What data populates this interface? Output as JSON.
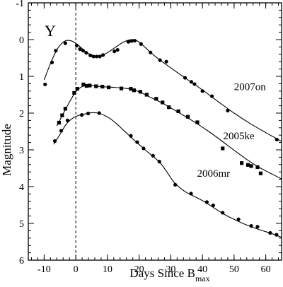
{
  "chart_data": {
    "type": "scatter",
    "title": "",
    "panel_label": "Y",
    "xlabel": {
      "main": "Days Since B",
      "subscript": "max"
    },
    "ylabel": "Magnitude",
    "xlim": [
      -15,
      65
    ],
    "ylim": [
      -1,
      6
    ],
    "y_inverted": true,
    "x_ticks": [
      -10,
      0,
      10,
      20,
      30,
      40,
      50,
      60
    ],
    "y_ticks": [
      -1,
      0,
      1,
      2,
      3,
      4,
      5,
      6
    ],
    "x_minor_step": 2,
    "y_minor_step": 0.2,
    "vline_x": 0,
    "grid": false,
    "series": [
      {
        "name": "2007on",
        "marker": "circle",
        "points": [
          [
            -9.7,
            1.22
          ],
          [
            -7.5,
            0.62
          ],
          [
            -6.3,
            0.3
          ],
          [
            -3.3,
            0.1
          ],
          [
            0.3,
            0.16
          ],
          [
            1.3,
            0.26
          ],
          [
            2.3,
            0.3
          ],
          [
            3.3,
            0.36
          ],
          [
            4.6,
            0.43
          ],
          [
            5.6,
            0.46
          ],
          [
            6.6,
            0.46
          ],
          [
            7.6,
            0.46
          ],
          [
            8.6,
            0.42
          ],
          [
            12.2,
            0.32
          ],
          [
            13.2,
            0.28
          ],
          [
            16.6,
            0.06
          ],
          [
            17.6,
            0.04
          ],
          [
            18.6,
            0.03
          ],
          [
            20.6,
            0.12
          ],
          [
            23.6,
            0.35
          ],
          [
            26.6,
            0.56
          ],
          [
            28.6,
            0.6
          ],
          [
            34.5,
            1.04
          ],
          [
            36.5,
            1.15
          ],
          [
            37.5,
            1.21
          ],
          [
            40.0,
            1.4
          ],
          [
            43.0,
            1.54
          ],
          [
            48.0,
            1.93
          ],
          [
            63.5,
            2.72
          ]
        ],
        "curve": [
          [
            -10,
            1.1
          ],
          [
            -8,
            0.65
          ],
          [
            -6,
            0.28
          ],
          [
            -4,
            0.07
          ],
          [
            -2.5,
            0.02
          ],
          [
            -1,
            0.05
          ],
          [
            1,
            0.17
          ],
          [
            3,
            0.32
          ],
          [
            5,
            0.42
          ],
          [
            7,
            0.45
          ],
          [
            9,
            0.4
          ],
          [
            11,
            0.3
          ],
          [
            13,
            0.18
          ],
          [
            15,
            0.07
          ],
          [
            16.5,
            0.02
          ],
          [
            18,
            0.0
          ],
          [
            19.5,
            0.04
          ],
          [
            21,
            0.14
          ],
          [
            23,
            0.3
          ],
          [
            25,
            0.45
          ],
          [
            27,
            0.58
          ],
          [
            30,
            0.77
          ],
          [
            35,
            1.07
          ],
          [
            40,
            1.37
          ],
          [
            45,
            1.69
          ],
          [
            50,
            2.0
          ],
          [
            55,
            2.28
          ],
          [
            60,
            2.53
          ],
          [
            65,
            2.77
          ]
        ],
        "label": "2007on",
        "label_at": [
          55,
          1.28
        ]
      },
      {
        "name": "2005ke",
        "marker": "square",
        "points": [
          [
            -5.3,
            2.26
          ],
          [
            -4.3,
            2.06
          ],
          [
            -3.3,
            1.88
          ],
          [
            -0.5,
            1.45
          ],
          [
            0.5,
            1.34
          ],
          [
            2.4,
            1.22
          ],
          [
            3.4,
            1.26
          ],
          [
            4.4,
            1.25
          ],
          [
            6.4,
            1.27
          ],
          [
            8.4,
            1.28
          ],
          [
            10.4,
            1.3
          ],
          [
            14.4,
            1.33
          ],
          [
            17.4,
            1.34
          ],
          [
            18.4,
            1.38
          ],
          [
            20.4,
            1.42
          ],
          [
            22.4,
            1.5
          ],
          [
            25.4,
            1.61
          ],
          [
            27.4,
            1.71
          ],
          [
            29.4,
            1.84
          ],
          [
            32.4,
            1.95
          ],
          [
            35.4,
            2.1
          ],
          [
            38.4,
            2.25
          ],
          [
            46.4,
            2.96
          ],
          [
            52.4,
            3.36
          ],
          [
            54.4,
            3.41
          ],
          [
            55.4,
            3.44
          ],
          [
            57.4,
            3.47
          ],
          [
            58.4,
            3.64
          ]
        ],
        "curve": [
          [
            -6,
            2.35
          ],
          [
            -4,
            2.02
          ],
          [
            -2,
            1.7
          ],
          [
            0,
            1.42
          ],
          [
            2,
            1.28
          ],
          [
            4,
            1.25
          ],
          [
            6,
            1.26
          ],
          [
            8,
            1.28
          ],
          [
            10,
            1.29
          ],
          [
            12,
            1.3
          ],
          [
            14,
            1.31
          ],
          [
            16,
            1.33
          ],
          [
            18,
            1.36
          ],
          [
            20,
            1.42
          ],
          [
            22,
            1.5
          ],
          [
            24,
            1.59
          ],
          [
            26,
            1.67
          ],
          [
            28,
            1.76
          ],
          [
            30,
            1.86
          ],
          [
            34,
            2.06
          ],
          [
            38,
            2.27
          ],
          [
            42,
            2.5
          ],
          [
            46,
            2.75
          ],
          [
            50,
            3.01
          ],
          [
            54,
            3.26
          ],
          [
            58,
            3.48
          ],
          [
            62,
            3.66
          ],
          [
            65,
            3.79
          ]
        ],
        "label": "2005ke",
        "label_at": [
          51.5,
          2.62
        ]
      },
      {
        "name": "2006mr",
        "marker": "circle",
        "points": [
          [
            -6.6,
            2.76
          ],
          [
            -4.6,
            2.48
          ],
          [
            -2.6,
            2.2
          ],
          [
            1.9,
            2.05
          ],
          [
            3.9,
            2.01
          ],
          [
            7.4,
            2.0
          ],
          [
            17.4,
            2.62
          ],
          [
            19.4,
            2.79
          ],
          [
            21.4,
            2.96
          ],
          [
            24.4,
            3.16
          ],
          [
            26.4,
            3.32
          ],
          [
            31.4,
            3.95
          ],
          [
            36.4,
            4.19
          ],
          [
            41.4,
            4.42
          ],
          [
            43.4,
            4.51
          ],
          [
            46.4,
            4.71
          ],
          [
            51.4,
            4.89
          ],
          [
            55.4,
            5.07
          ],
          [
            57.4,
            5.09
          ],
          [
            61.4,
            5.26
          ],
          [
            63.4,
            5.31
          ]
        ],
        "curve": [
          [
            -7,
            2.85
          ],
          [
            -5,
            2.58
          ],
          [
            -3,
            2.3
          ],
          [
            -1,
            2.14
          ],
          [
            1,
            2.06
          ],
          [
            3,
            2.02
          ],
          [
            5,
            1.99
          ],
          [
            7,
            2.0
          ],
          [
            9,
            2.06
          ],
          [
            11,
            2.16
          ],
          [
            13,
            2.3
          ],
          [
            15,
            2.46
          ],
          [
            17,
            2.62
          ],
          [
            19,
            2.78
          ],
          [
            21,
            2.93
          ],
          [
            23,
            3.08
          ],
          [
            25,
            3.22
          ],
          [
            27,
            3.39
          ],
          [
            29,
            3.63
          ],
          [
            31,
            3.88
          ],
          [
            33,
            4.04
          ],
          [
            35,
            4.16
          ],
          [
            38,
            4.29
          ],
          [
            41,
            4.43
          ],
          [
            44,
            4.6
          ],
          [
            47,
            4.76
          ],
          [
            50,
            4.89
          ],
          [
            53,
            5.01
          ],
          [
            56,
            5.11
          ],
          [
            59,
            5.2
          ],
          [
            62,
            5.28
          ],
          [
            65,
            5.38
          ]
        ],
        "label": "2006mr",
        "label_at": [
          43.5,
          3.63
        ]
      }
    ]
  }
}
